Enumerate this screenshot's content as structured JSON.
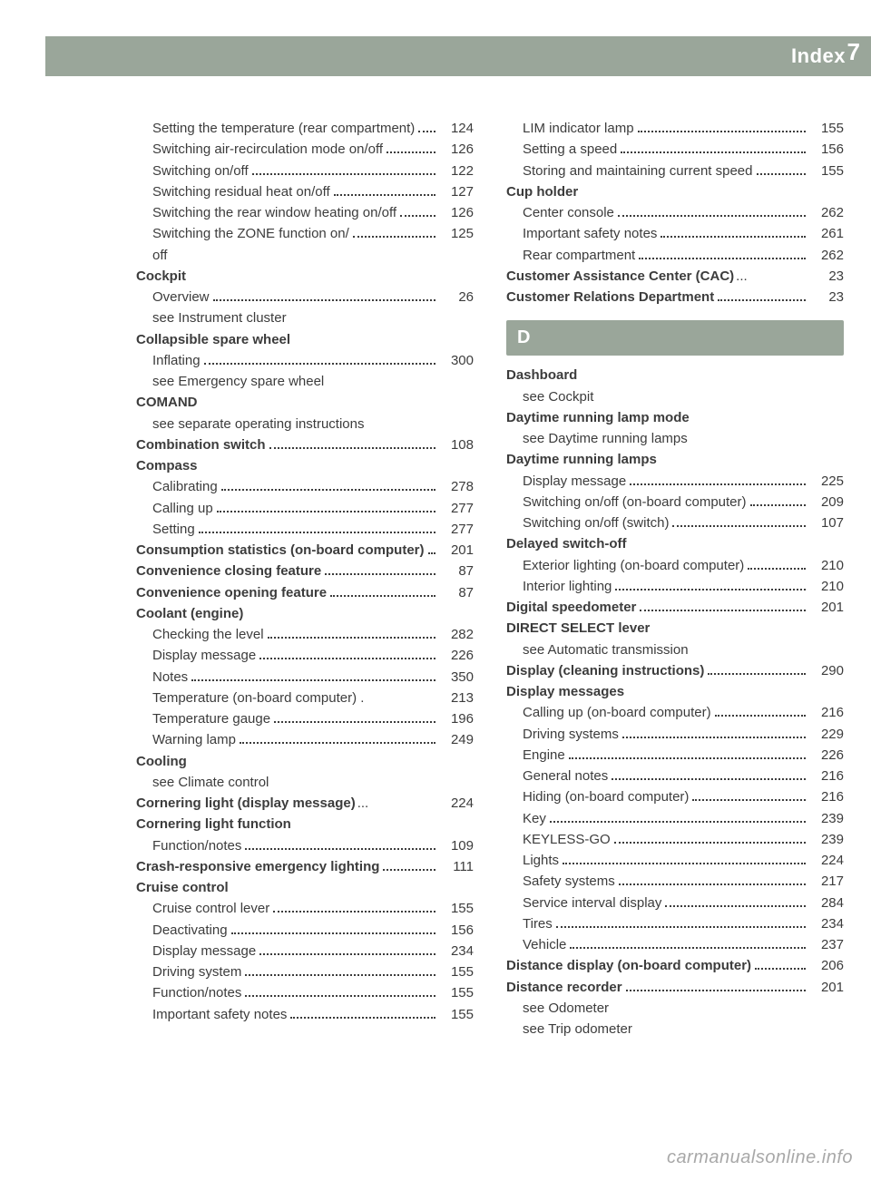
{
  "header": {
    "title": "Index",
    "page_number": "7"
  },
  "section_letter": "D",
  "watermark": "carmanualsonline.info",
  "colors": {
    "band_bg": "#9aa69a",
    "band_text": "#ffffff",
    "text": "#3c3c3c",
    "dots": "#3c3c3c",
    "watermark": "#a8a8a8",
    "page_bg": "#ffffff"
  },
  "left": [
    {
      "label": "Setting the temperature (rear compartment)",
      "page": "124",
      "sub": true
    },
    {
      "label": "Switching air-recirculation mode on/off",
      "page": "126",
      "sub": true
    },
    {
      "label": "Switching on/off",
      "page": "122",
      "sub": true
    },
    {
      "label": "Switching residual heat on/off",
      "page": "127",
      "sub": true
    },
    {
      "label": "Switching the rear window heating on/off",
      "page": "126",
      "sub": true
    },
    {
      "label": "Switching the ZONE function on/\noff",
      "page": "125",
      "sub": true
    },
    {
      "label": "Cockpit",
      "bold": true,
      "noref": true
    },
    {
      "label": "Overview",
      "page": "26",
      "sub": true
    },
    {
      "label": "see Instrument cluster",
      "sub": true,
      "noref": true
    },
    {
      "label": "Collapsible spare wheel",
      "bold": true,
      "noref": true
    },
    {
      "label": "Inflating",
      "page": "300",
      "sub": true
    },
    {
      "label": "see Emergency spare wheel",
      "sub": true,
      "noref": true
    },
    {
      "label": "COMAND",
      "bold": true,
      "noref": true
    },
    {
      "label": "see separate operating instructions",
      "sub": true,
      "noref": true
    },
    {
      "label": "Combination switch",
      "page": "108",
      "bold": true
    },
    {
      "label": "Compass",
      "bold": true,
      "noref": true
    },
    {
      "label": "Calibrating",
      "page": "278",
      "sub": true
    },
    {
      "label": "Calling up",
      "page": "277",
      "sub": true
    },
    {
      "label": "Setting",
      "page": "277",
      "sub": true
    },
    {
      "label": "Consumption statistics (on-board computer)",
      "page": "201",
      "bold": true
    },
    {
      "label": "Convenience closing feature",
      "page": "87",
      "bold": true
    },
    {
      "label": "Convenience opening feature",
      "page": "87",
      "bold": true
    },
    {
      "label": "Coolant (engine)",
      "bold": true,
      "noref": true
    },
    {
      "label": "Checking the level",
      "page": "282",
      "sub": true
    },
    {
      "label": "Display message",
      "page": "226",
      "sub": true
    },
    {
      "label": "Notes",
      "page": "350",
      "sub": true
    },
    {
      "label": "Temperature (on-board computer) .",
      "page": "213",
      "sub": true,
      "nodots": true
    },
    {
      "label": "Temperature gauge",
      "page": "196",
      "sub": true
    },
    {
      "label": "Warning lamp",
      "page": "249",
      "sub": true
    },
    {
      "label": "Cooling",
      "bold": true,
      "noref": true
    },
    {
      "label": "see Climate control",
      "sub": true,
      "noref": true
    },
    {
      "label": "Cornering light (display message)",
      "page": "224",
      "bold": true,
      "shortdots": true
    },
    {
      "label": "Cornering light function",
      "bold": true,
      "noref": true
    },
    {
      "label": "Function/notes",
      "page": "109",
      "sub": true
    },
    {
      "label": "Crash-responsive emergency lighting",
      "page": "111",
      "bold": true
    },
    {
      "label": "Cruise control",
      "bold": true,
      "noref": true
    },
    {
      "label": "Cruise control lever",
      "page": "155",
      "sub": true
    },
    {
      "label": "Deactivating",
      "page": "156",
      "sub": true
    },
    {
      "label": "Display message",
      "page": "234",
      "sub": true
    },
    {
      "label": "Driving system",
      "page": "155",
      "sub": true
    },
    {
      "label": "Function/notes",
      "page": "155",
      "sub": true
    },
    {
      "label": "Important safety notes",
      "page": "155",
      "sub": true
    }
  ],
  "right_top": [
    {
      "label": "LIM indicator lamp",
      "page": "155",
      "sub": true
    },
    {
      "label": "Setting a speed",
      "page": "156",
      "sub": true
    },
    {
      "label": "Storing and maintaining current speed",
      "page": "155",
      "sub": true
    },
    {
      "label": "Cup holder",
      "bold": true,
      "noref": true
    },
    {
      "label": "Center console",
      "page": "262",
      "sub": true
    },
    {
      "label": "Important safety notes",
      "page": "261",
      "sub": true
    },
    {
      "label": "Rear compartment",
      "page": "262",
      "sub": true
    },
    {
      "label": "Customer Assistance Center (CAC)",
      "page": "23",
      "bold": true,
      "shortdots": true
    },
    {
      "label": "Customer Relations Department",
      "page": "23",
      "bold": true
    }
  ],
  "right_bottom": [
    {
      "label": "Dashboard",
      "bold": true,
      "noref": true
    },
    {
      "label": "see Cockpit",
      "sub": true,
      "noref": true
    },
    {
      "label": "Daytime running lamp mode",
      "bold": true,
      "noref": true
    },
    {
      "label": "see Daytime running lamps",
      "sub": true,
      "noref": true
    },
    {
      "label": "Daytime running lamps",
      "bold": true,
      "noref": true
    },
    {
      "label": "Display message",
      "page": "225",
      "sub": true
    },
    {
      "label": "Switching on/off (on-board computer)",
      "page": "209",
      "sub": true
    },
    {
      "label": "Switching on/off (switch)",
      "page": "107",
      "sub": true
    },
    {
      "label": "Delayed switch-off",
      "bold": true,
      "noref": true
    },
    {
      "label": "Exterior lighting (on-board computer)",
      "page": "210",
      "sub": true
    },
    {
      "label": "Interior lighting",
      "page": "210",
      "sub": true
    },
    {
      "label": "Digital speedometer",
      "page": "201",
      "bold": true
    },
    {
      "label": "DIRECT SELECT lever",
      "bold": true,
      "noref": true
    },
    {
      "label": "see Automatic transmission",
      "sub": true,
      "noref": true
    },
    {
      "label": "Display (cleaning instructions)",
      "page": "290",
      "bold": true
    },
    {
      "label": "Display messages",
      "bold": true,
      "noref": true
    },
    {
      "label": "Calling up (on-board computer)",
      "page": "216",
      "sub": true
    },
    {
      "label": "Driving systems",
      "page": "229",
      "sub": true
    },
    {
      "label": "Engine",
      "page": "226",
      "sub": true
    },
    {
      "label": "General notes",
      "page": "216",
      "sub": true
    },
    {
      "label": "Hiding (on-board computer)",
      "page": "216",
      "sub": true
    },
    {
      "label": "Key",
      "page": "239",
      "sub": true
    },
    {
      "label": "KEYLESS-GO",
      "page": "239",
      "sub": true
    },
    {
      "label": "Lights",
      "page": "224",
      "sub": true
    },
    {
      "label": "Safety systems",
      "page": "217",
      "sub": true
    },
    {
      "label": "Service interval display",
      "page": "284",
      "sub": true
    },
    {
      "label": "Tires",
      "page": "234",
      "sub": true
    },
    {
      "label": "Vehicle",
      "page": "237",
      "sub": true
    },
    {
      "label": "Distance display (on-board computer)",
      "page": "206",
      "bold": true
    },
    {
      "label": "Distance recorder",
      "page": "201",
      "bold": true
    },
    {
      "label": "see Odometer",
      "sub": true,
      "noref": true
    },
    {
      "label": "see Trip odometer",
      "sub": true,
      "noref": true
    }
  ]
}
